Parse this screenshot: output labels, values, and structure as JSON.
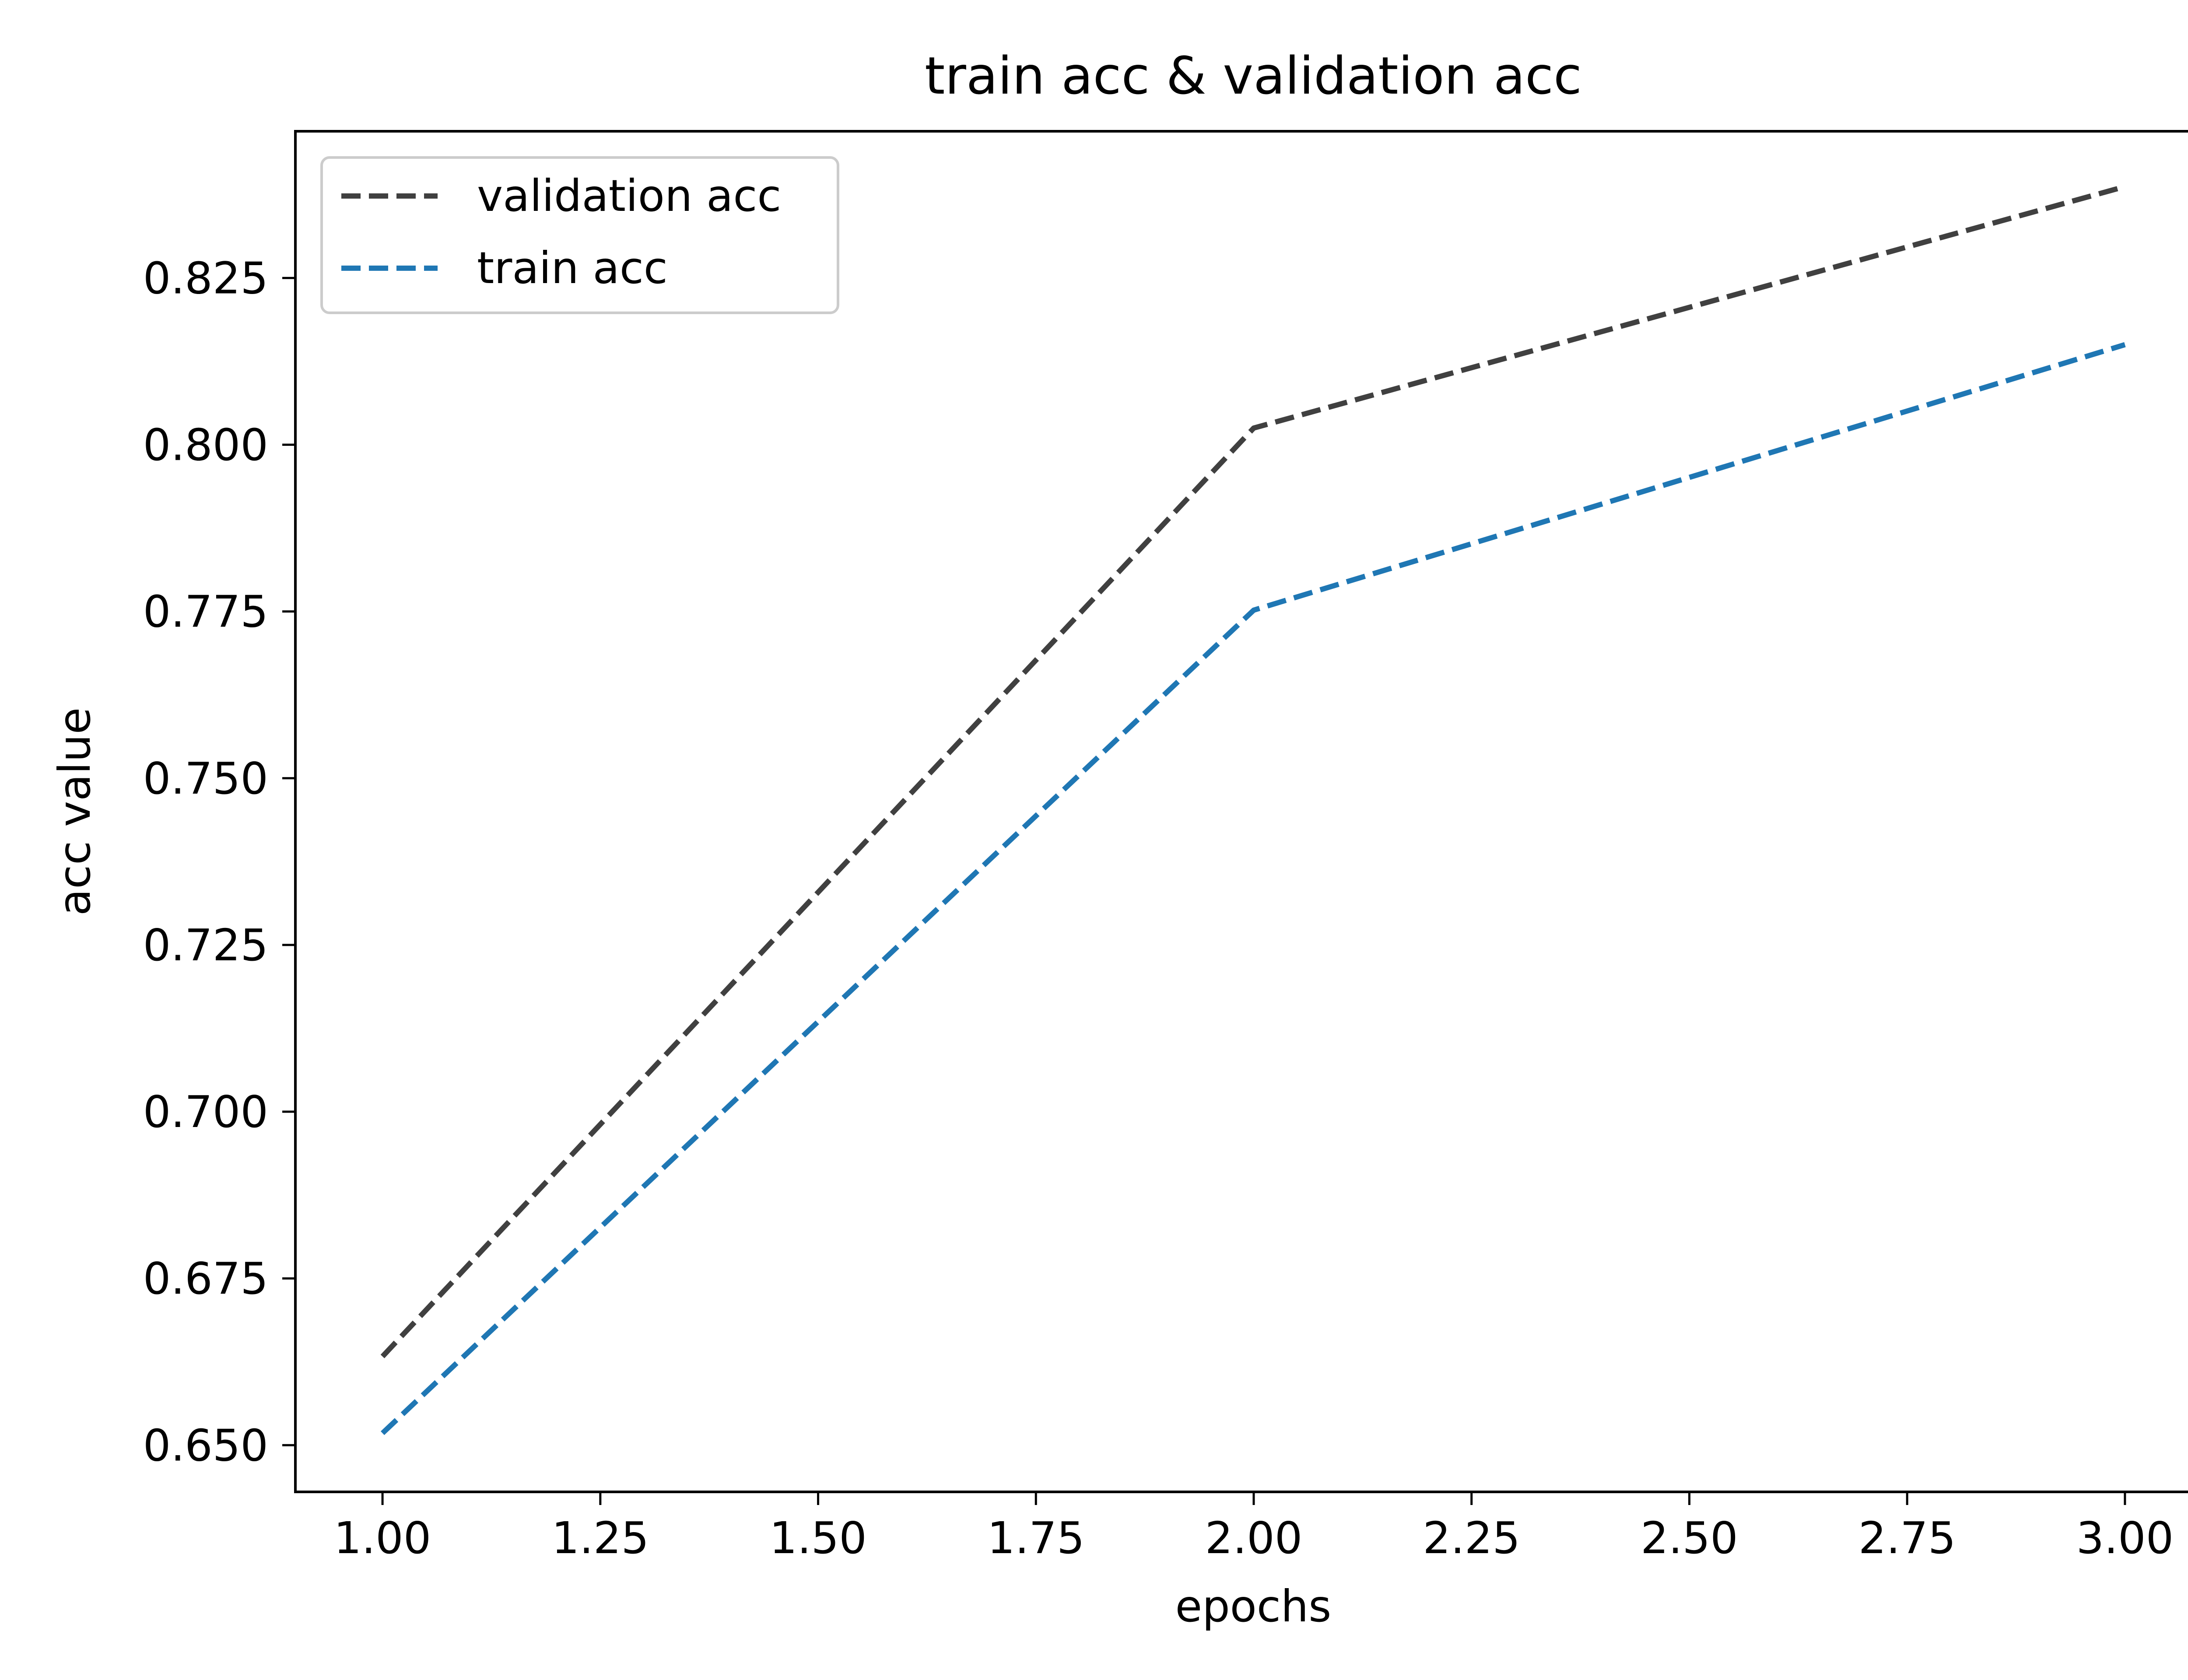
{
  "chart_data": {
    "type": "line",
    "title": "train acc & validation acc",
    "xlabel": "epochs",
    "ylabel": "acc value",
    "xlim": [
      0.9,
      3.1
    ],
    "ylim": [
      0.643,
      0.847
    ],
    "x_ticks": [
      1.0,
      1.25,
      1.5,
      1.75,
      2.0,
      2.25,
      2.5,
      2.75,
      3.0
    ],
    "x_tick_labels": [
      "1.00",
      "1.25",
      "1.50",
      "1.75",
      "2.00",
      "2.25",
      "2.50",
      "2.75",
      "3.00"
    ],
    "y_ticks": [
      0.65,
      0.675,
      0.7,
      0.725,
      0.75,
      0.775,
      0.8,
      0.825
    ],
    "y_tick_labels": [
      "0.650",
      "0.675",
      "0.700",
      "0.725",
      "0.750",
      "0.775",
      "0.800",
      "0.825"
    ],
    "grid": false,
    "legend_position": "upper-left",
    "series": [
      {
        "name": "validation acc",
        "color": "#404040",
        "line_style": "dashed",
        "x": [
          1.0,
          2.0,
          3.0
        ],
        "y": [
          0.6633,
          0.8025,
          0.8387
        ]
      },
      {
        "name": "train acc",
        "color": "#1f77b4",
        "line_style": "dashed",
        "x": [
          1.0,
          2.0,
          3.0
        ],
        "y": [
          0.6518,
          0.7752,
          0.815
        ]
      }
    ]
  }
}
